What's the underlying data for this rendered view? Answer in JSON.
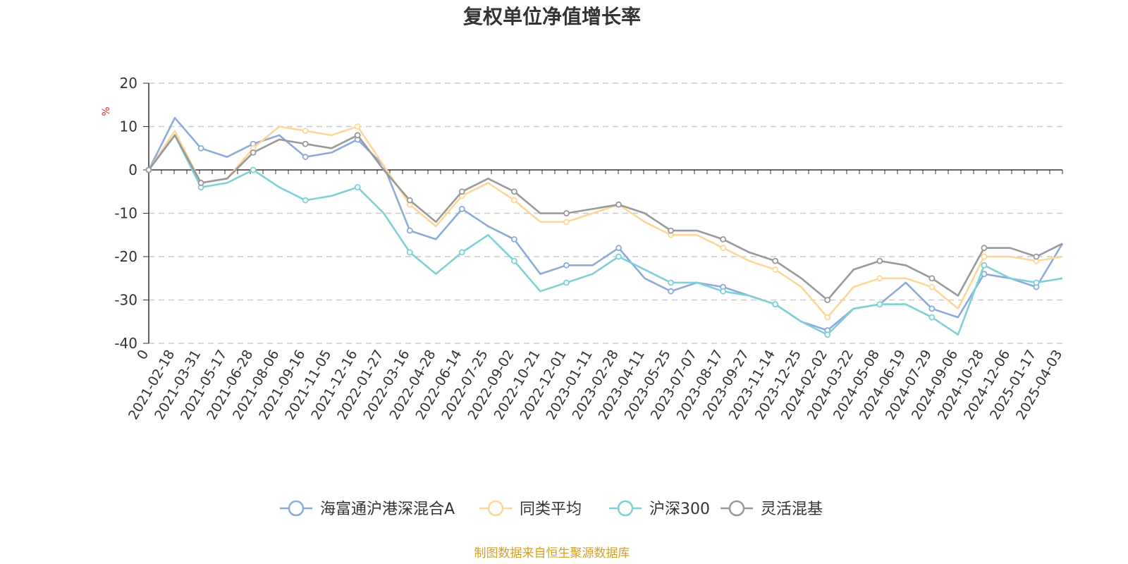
{
  "chart_data": {
    "type": "line",
    "title": "复权单位净值增长率",
    "ylabel": "%",
    "ylim": [
      -40,
      20
    ],
    "yticks": [
      20,
      10,
      0,
      -10,
      -20,
      -30,
      -40
    ],
    "ytick_labels": [
      "20",
      "10",
      "0",
      "-10",
      "-20",
      "-30",
      "-40"
    ],
    "xtick_labels": [
      "0",
      "2021-02-18",
      "2021-03-31",
      "2021-05-17",
      "2021-06-28",
      "2021-08-06",
      "2021-09-16",
      "2021-11-05",
      "2021-12-16",
      "2022-01-27",
      "2022-03-16",
      "2022-04-28",
      "2022-06-14",
      "2022-07-25",
      "2022-09-02",
      "2022-10-21",
      "2022-12-01",
      "2023-01-11",
      "2023-02-28",
      "2023-04-11",
      "2023-05-25",
      "2023-07-07",
      "2023-08-17",
      "2023-09-27",
      "2023-11-14",
      "2023-12-25",
      "2024-02-02",
      "2024-03-22",
      "2024-05-08",
      "2024-06-19",
      "2024-07-29",
      "2024-09-06",
      "2024-10-28",
      "2024-12-06",
      "2025-01-17",
      "2025-04-03"
    ],
    "x": [
      0,
      1,
      2,
      3,
      4,
      5,
      6,
      7,
      8,
      9,
      10,
      11,
      12,
      13,
      14,
      15,
      16,
      17,
      18,
      19,
      20,
      21,
      22,
      23,
      24,
      25,
      26,
      27,
      28,
      29,
      30,
      31,
      32,
      33,
      34,
      35
    ],
    "grid": true,
    "legend_position": "bottom",
    "series": [
      {
        "name": "海富通沪港深混合A",
        "color": "#8eaadb",
        "values": [
          0,
          12,
          5,
          3,
          6,
          8,
          3,
          4,
          7,
          1,
          -14,
          -16,
          -9,
          -13,
          -16,
          -24,
          -22,
          -22,
          -18,
          -25,
          -28,
          -26,
          -27,
          -29,
          -31,
          -35,
          -37,
          -32,
          -31,
          -26,
          -32,
          -34,
          -24,
          -25,
          -27,
          -17
        ]
      },
      {
        "name": "同类平均",
        "color": "#ffd699",
        "values": [
          0,
          9,
          -3,
          -2,
          5,
          10,
          9,
          8,
          10,
          1,
          -8,
          -13,
          -6,
          -3,
          -7,
          -12,
          -12,
          -10,
          -8,
          -12,
          -15,
          -15,
          -18,
          -21,
          -23,
          -27,
          -34,
          -27,
          -25,
          -25,
          -27,
          -32,
          -20,
          -20,
          -21,
          -20
        ]
      },
      {
        "name": "沪深300",
        "color": "#7fd1d6",
        "values": [
          0,
          8,
          -4,
          -3,
          0,
          -4,
          -7,
          -6,
          -4,
          -10,
          -19,
          -24,
          -19,
          -15,
          -21,
          -28,
          -26,
          -24,
          -20,
          -23,
          -26,
          -26,
          -28,
          -29,
          -31,
          -35,
          -38,
          -32,
          -31,
          -31,
          -34,
          -38,
          -22,
          -25,
          -26,
          -25
        ]
      },
      {
        "name": "灵活混基",
        "color": "#999999",
        "values": [
          0,
          8,
          -3,
          -2,
          4,
          7,
          6,
          5,
          8,
          0,
          -7,
          -12,
          -5,
          -2,
          -5,
          -10,
          -10,
          -9,
          -8,
          -10,
          -14,
          -14,
          -16,
          -19,
          -21,
          -25,
          -30,
          -23,
          -21,
          -22,
          -25,
          -29,
          -18,
          -18,
          -20,
          -17
        ]
      }
    ]
  },
  "footer": {
    "source": "制图数据来自恒生聚源数据库"
  },
  "colors": {
    "axis": "#333333",
    "grid": "#cccccc",
    "unit": "#e03030",
    "source": "#d4a028"
  }
}
